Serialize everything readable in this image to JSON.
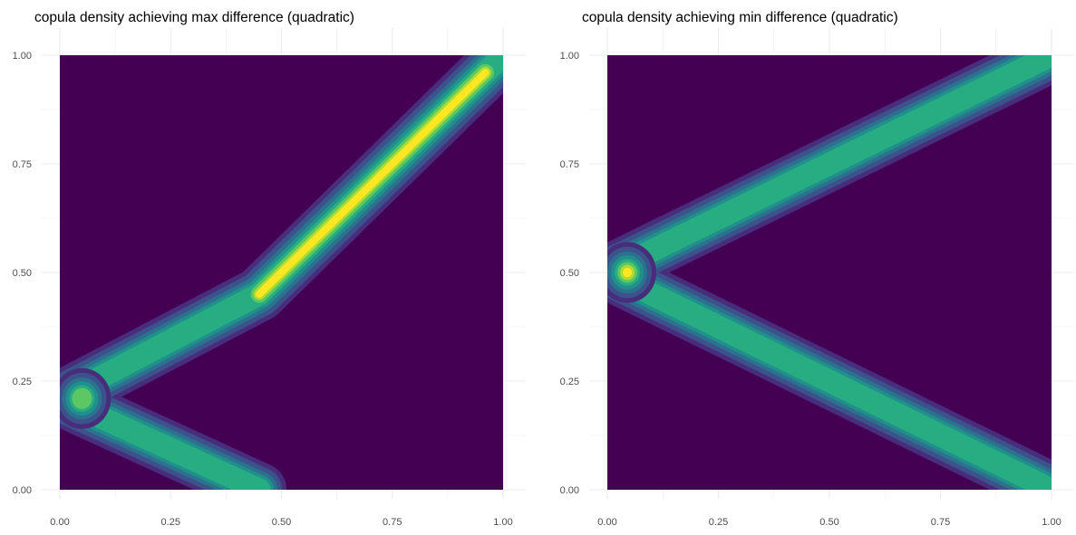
{
  "colors": {
    "viridis_levels": [
      "#440154",
      "#472D7B",
      "#3B528B",
      "#2C728E",
      "#21908C",
      "#27AD81",
      "#5DC863",
      "#AADC32",
      "#FDE725"
    ],
    "grid": "#ebebeb"
  },
  "chart_data": [
    {
      "type": "heatmap",
      "subtype": "filled-contour",
      "title": "copula density achieving max difference (quadratic)",
      "xlabel": "",
      "ylabel": "",
      "xlim": [
        0,
        1
      ],
      "ylim": [
        0,
        1
      ],
      "x_ticks": [
        "0.00",
        "0.25",
        "0.50",
        "0.75",
        "1.00"
      ],
      "y_ticks": [
        "0.00",
        "0.25",
        "0.50",
        "0.75",
        "1.00"
      ],
      "grid": true,
      "legend": "none",
      "ridges": [
        {
          "points": [
            [
              0.0,
              0.21
            ],
            [
              0.45,
              0.0
            ]
          ],
          "peak_level": 5
        },
        {
          "points": [
            [
              0.0,
              0.21
            ],
            [
              0.45,
              0.45
            ],
            [
              1.0,
              1.0
            ]
          ],
          "peak_level": 5
        },
        {
          "points": [
            [
              0.45,
              0.45
            ],
            [
              0.96,
              0.96
            ]
          ],
          "peak_level": 8
        }
      ],
      "hotspots": [
        {
          "x": 0.05,
          "y": 0.21,
          "peak_level": 6
        }
      ]
    },
    {
      "type": "heatmap",
      "subtype": "filled-contour",
      "title": "copula density achieving min difference (quadratic)",
      "xlabel": "",
      "ylabel": "",
      "xlim": [
        0,
        1
      ],
      "ylim": [
        0,
        1
      ],
      "x_ticks": [
        "0.00",
        "0.25",
        "0.50",
        "0.75",
        "1.00"
      ],
      "y_ticks": [
        "0.00",
        "0.25",
        "0.50",
        "0.75",
        "1.00"
      ],
      "grid": true,
      "legend": "none",
      "ridges": [
        {
          "points": [
            [
              0.0,
              0.5
            ],
            [
              1.0,
              1.0
            ]
          ],
          "peak_level": 5
        },
        {
          "points": [
            [
              0.0,
              0.5
            ],
            [
              1.0,
              0.0
            ]
          ],
          "peak_level": 5
        }
      ],
      "hotspots": [
        {
          "x": 0.045,
          "y": 0.5,
          "peak_level": 8
        }
      ]
    }
  ]
}
